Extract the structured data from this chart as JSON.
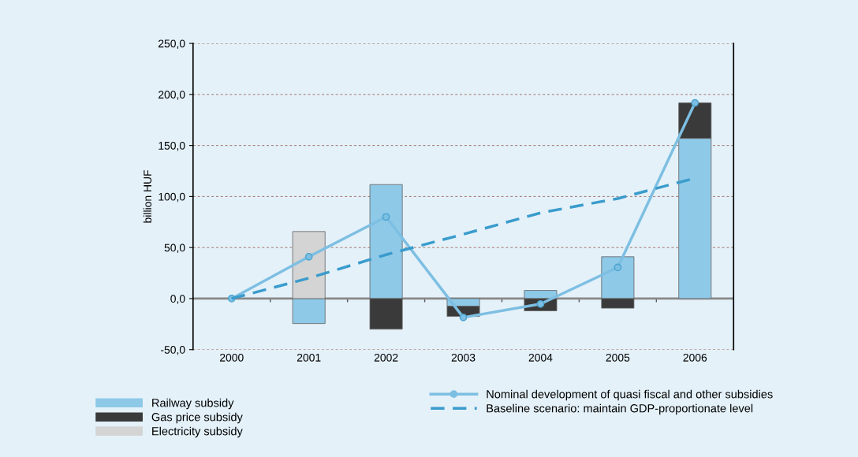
{
  "chart_data": {
    "type": "bar",
    "stacked": true,
    "ylabel": "billion HUF",
    "categories": [
      "2000",
      "2001",
      "2002",
      "2003",
      "2004",
      "2005",
      "2006"
    ],
    "series": [
      {
        "name": "Railway subsidy",
        "color": "#8ec9e8",
        "values": [
          null,
          -24.5,
          111.7,
          -7.5,
          8,
          41,
          157
        ]
      },
      {
        "name": "Gas price subsidy",
        "color": "#3a3a3a",
        "values": [
          null,
          null,
          -30,
          -10,
          -12,
          -9.4,
          34.7
        ]
      },
      {
        "name": "Electricity subsidy",
        "color": "#d4d4d4",
        "values": [
          null,
          65.7,
          null,
          null,
          null,
          null,
          null
        ]
      },
      {
        "name": "Nominal development of quasi fiscal and other subsidies",
        "type": "line",
        "color": "#7dbfe2",
        "marker": "circle",
        "line_style": "solid",
        "values": [
          0,
          41,
          80,
          -18.5,
          -5.3,
          30.5,
          191.7
        ]
      },
      {
        "name": "Baseline scenario: maintain GDP-proportionate level",
        "type": "line",
        "color": "#3a9ccc",
        "marker": "none",
        "line_style": "dashed",
        "values": [
          0,
          20,
          43,
          63,
          84,
          98,
          118
        ]
      }
    ],
    "ylim": [
      -50,
      250
    ],
    "yticks": [
      {
        "value": -50,
        "label": "-50,0"
      },
      {
        "value": 0,
        "label": "0,0"
      },
      {
        "value": 50,
        "label": "50,0"
      },
      {
        "value": 100,
        "label": "100,0"
      },
      {
        "value": 150,
        "label": "150,0"
      },
      {
        "value": 200,
        "label": "200,0"
      },
      {
        "value": 250,
        "label": "250,0"
      }
    ],
    "grid": "y",
    "legend": "bottom"
  }
}
